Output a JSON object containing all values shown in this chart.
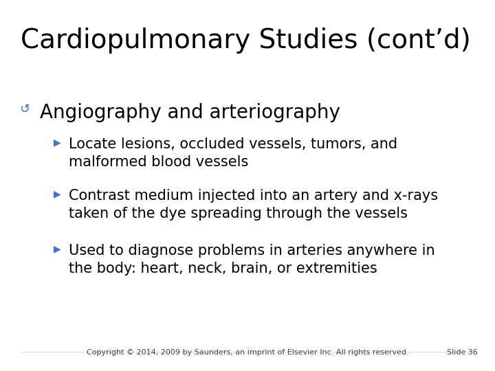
{
  "title": "Cardiopulmonary Studies (cont’d)",
  "title_fontsize": 28,
  "title_color": "#000000",
  "bg_color": "#ffffff",
  "bullet1_text": "Angiography and arteriography",
  "bullet1_color": "#000000",
  "bullet1_fontsize": 20,
  "bullet1_marker_color": "#4472C4",
  "sub_bullets": [
    "Locate lesions, occluded vessels, tumors, and\nmalformed blood vessels",
    "Contrast medium injected into an artery and x-rays\ntaken of the dye spreading through the vessels",
    "Used to diagnose problems in arteries anywhere in\nthe body: heart, neck, brain, or extremities"
  ],
  "sub_bullet_color": "#000000",
  "sub_bullet_fontsize": 15,
  "sub_bullet_marker_color": "#4472C4",
  "footer_text": "Copyright © 2014, 2009 by Saunders, an imprint of Elsevier Inc. All rights reserved.",
  "footer_right": "Slide 36",
  "footer_fontsize": 8,
  "footer_color": "#404040"
}
